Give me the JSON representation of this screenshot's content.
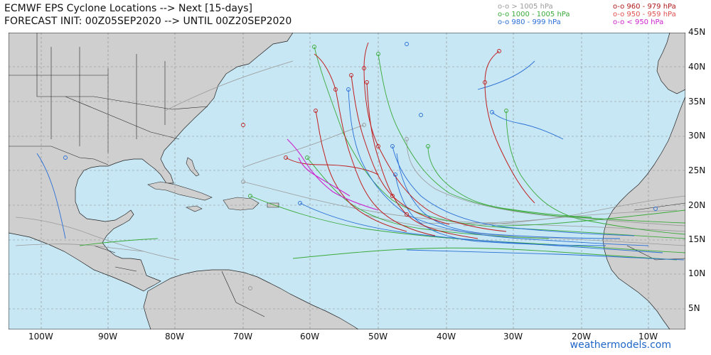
{
  "header": {
    "title_line1": "ECMWF EPS Cyclone Locations --> Next [15-days]",
    "title_line2": "FORECAST INIT: 00Z05SEP2020 --> UNTIL 00Z20SEP2020"
  },
  "legend": [
    {
      "label": "o-o > 1005 hPa",
      "color": "#9a9a9a"
    },
    {
      "label": "o-o 1000 - 1005 hPa",
      "color": "#3aaa3a"
    },
    {
      "label": "o-o 980 - 999 hPa",
      "color": "#2a6fd6"
    },
    {
      "label": "o-o 960 - 979 hPa",
      "color": "#b01818"
    },
    {
      "label": "o-o 950 - 959 hPa",
      "color": "#e05050"
    },
    {
      "label": "o-o < 950 hPa",
      "color": "#cc22cc"
    }
  ],
  "axes": {
    "lat_labels": [
      "45N",
      "40N",
      "35N",
      "30N",
      "25N",
      "20N",
      "15N",
      "10N",
      "5N"
    ],
    "lon_labels": [
      "100W",
      "90W",
      "80W",
      "70W",
      "60W",
      "50W",
      "40W",
      "30W",
      "20W",
      "10W"
    ]
  },
  "colors": {
    "ocean": "#c7e7f4",
    "land": "#cfcfcf",
    "border": "#222222"
  },
  "credit": "weathermodels.com"
}
